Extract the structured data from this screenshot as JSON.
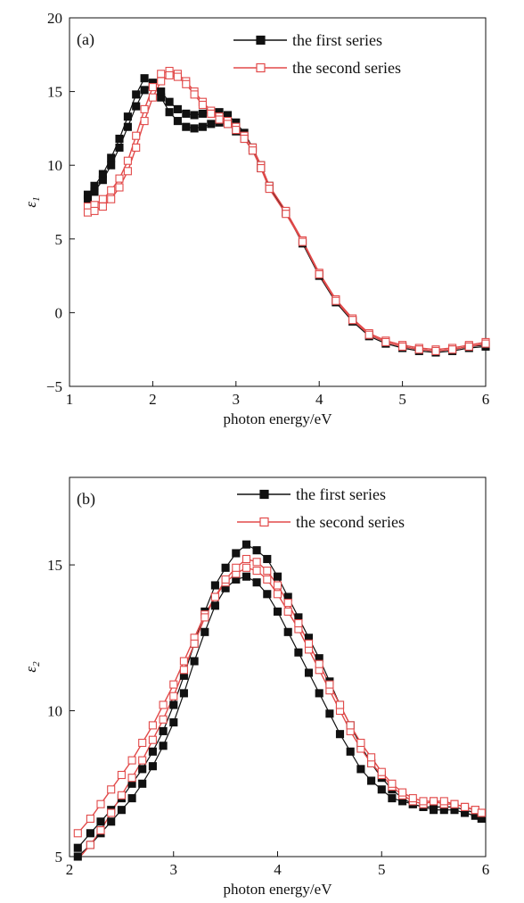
{
  "chart_data": [
    {
      "type": "line",
      "panel_label": "(a)",
      "xlabel": "photon energy/eV",
      "ylabel": "ε",
      "ylabel_sub": "1",
      "xlim": [
        1,
        6
      ],
      "ylim": [
        -5,
        20
      ],
      "xticks": [
        1,
        2,
        3,
        4,
        5,
        6
      ],
      "yticks": [
        -5,
        0,
        5,
        10,
        15,
        20
      ],
      "ytick_labels": [
        "−5",
        "0",
        "5",
        "10",
        "15",
        "20"
      ],
      "legend_position": "top-right",
      "series": [
        {
          "name": "the first series",
          "color": "#111111",
          "marker": "filled-square",
          "curves": [
            {
              "x": [
                1.22,
                1.3,
                1.4,
                1.5,
                1.6,
                1.7,
                1.8,
                1.9,
                2.0,
                2.1,
                2.2,
                2.3,
                2.4,
                2.5,
                2.6,
                2.7,
                2.8,
                2.9,
                3.0,
                3.1,
                3.2,
                3.3,
                3.4,
                3.6,
                3.8,
                4.0,
                4.2,
                4.4,
                4.6,
                4.8,
                5.0,
                5.2,
                5.4,
                5.6,
                5.8,
                6.0
              ],
              "y": [
                8.0,
                8.6,
                9.4,
                10.5,
                11.8,
                13.3,
                14.8,
                15.9,
                15.6,
                14.6,
                13.6,
                13.0,
                12.6,
                12.5,
                12.6,
                12.8,
                12.9,
                12.8,
                12.3,
                11.8,
                11.0,
                9.8,
                8.5,
                6.8,
                4.8,
                2.6,
                0.8,
                -0.5,
                -1.5,
                -2.0,
                -2.3,
                -2.5,
                -2.6,
                -2.5,
                -2.3,
                -2.2
              ]
            },
            {
              "x": [
                1.22,
                1.3,
                1.4,
                1.5,
                1.6,
                1.7,
                1.8,
                1.9,
                2.0,
                2.1,
                2.2,
                2.3,
                2.4,
                2.5,
                2.6,
                2.7,
                2.8,
                2.9,
                3.0,
                3.1,
                3.2,
                3.3,
                3.4,
                3.6,
                3.8,
                4.0,
                4.2,
                4.4,
                4.6,
                4.8,
                5.0,
                5.2,
                5.4,
                5.6,
                5.8,
                6.0
              ],
              "y": [
                7.7,
                8.2,
                9.0,
                10.0,
                11.2,
                12.6,
                14.0,
                15.1,
                15.4,
                15.0,
                14.3,
                13.8,
                13.5,
                13.4,
                13.5,
                13.6,
                13.6,
                13.4,
                12.9,
                12.2,
                11.2,
                10.0,
                8.6,
                6.8,
                4.7,
                2.5,
                0.7,
                -0.6,
                -1.6,
                -2.1,
                -2.4,
                -2.6,
                -2.7,
                -2.6,
                -2.4,
                -2.3
              ]
            }
          ]
        },
        {
          "name": "the second series",
          "color": "#e24a4a",
          "marker": "open-square",
          "curves": [
            {
              "x": [
                1.22,
                1.3,
                1.4,
                1.5,
                1.6,
                1.7,
                1.8,
                1.9,
                2.0,
                2.1,
                2.2,
                2.3,
                2.4,
                2.5,
                2.6,
                2.7,
                2.8,
                2.9,
                3.0,
                3.1,
                3.2,
                3.3,
                3.4,
                3.6,
                3.8,
                4.0,
                4.2,
                4.4,
                4.6,
                4.8,
                5.0,
                5.2,
                5.4,
                5.6,
                5.8,
                6.0
              ],
              "y": [
                7.2,
                7.3,
                7.7,
                8.3,
                9.1,
                10.3,
                12.0,
                13.8,
                15.3,
                16.2,
                16.4,
                16.2,
                15.7,
                15.0,
                14.3,
                13.7,
                13.3,
                13.0,
                12.6,
                12.0,
                11.2,
                10.0,
                8.6,
                6.9,
                4.9,
                2.7,
                0.9,
                -0.4,
                -1.4,
                -1.9,
                -2.2,
                -2.4,
                -2.5,
                -2.4,
                -2.2,
                -2.0
              ]
            },
            {
              "x": [
                1.22,
                1.3,
                1.4,
                1.5,
                1.6,
                1.7,
                1.8,
                1.9,
                2.0,
                2.1,
                2.2,
                2.3,
                2.4,
                2.5,
                2.6,
                2.7,
                2.8,
                2.9,
                3.0,
                3.1,
                3.2,
                3.3,
                3.4,
                3.6,
                3.8,
                4.0,
                4.2,
                4.4,
                4.6,
                4.8,
                5.0,
                5.2,
                5.4,
                5.6,
                5.8,
                6.0
              ],
              "y": [
                6.8,
                6.9,
                7.2,
                7.7,
                8.5,
                9.6,
                11.2,
                13.0,
                14.6,
                15.7,
                16.1,
                16.0,
                15.5,
                14.8,
                14.1,
                13.5,
                13.1,
                12.8,
                12.4,
                11.8,
                11.0,
                9.8,
                8.4,
                6.7,
                4.8,
                2.6,
                0.8,
                -0.5,
                -1.5,
                -2.0,
                -2.3,
                -2.5,
                -2.6,
                -2.5,
                -2.3,
                -2.1
              ]
            }
          ]
        }
      ]
    },
    {
      "type": "line",
      "panel_label": "(b)",
      "xlabel": "photon energy/eV",
      "ylabel": "ε",
      "ylabel_sub": "2",
      "xlim": [
        2,
        6
      ],
      "ylim": [
        5,
        18
      ],
      "xticks": [
        2,
        3,
        4,
        5,
        6
      ],
      "yticks": [
        5,
        10,
        15
      ],
      "ytick_labels": [
        "5",
        "10",
        "15"
      ],
      "legend_position": "top-right",
      "series": [
        {
          "name": "the first series",
          "color": "#111111",
          "marker": "filled-square",
          "curves": [
            {
              "x": [
                2.08,
                2.2,
                2.3,
                2.4,
                2.5,
                2.6,
                2.7,
                2.8,
                2.9,
                3.0,
                3.1,
                3.2,
                3.3,
                3.4,
                3.5,
                3.6,
                3.7,
                3.8,
                3.9,
                4.0,
                4.1,
                4.2,
                4.3,
                4.4,
                4.5,
                4.6,
                4.7,
                4.8,
                4.9,
                5.0,
                5.1,
                5.2,
                5.3,
                5.4,
                5.5,
                5.6,
                5.7,
                5.8,
                5.9,
                5.96
              ],
              "y": [
                5.3,
                5.8,
                6.2,
                6.6,
                7.0,
                7.5,
                8.0,
                8.6,
                9.3,
                10.2,
                11.2,
                12.3,
                13.4,
                14.3,
                14.9,
                15.4,
                15.7,
                15.5,
                15.2,
                14.6,
                13.9,
                13.2,
                12.5,
                11.8,
                11.0,
                10.2,
                9.5,
                8.8,
                8.2,
                7.7,
                7.3,
                7.0,
                6.8,
                6.7,
                6.6,
                6.6,
                6.6,
                6.5,
                6.4,
                6.3
              ]
            },
            {
              "x": [
                2.08,
                2.2,
                2.3,
                2.4,
                2.5,
                2.6,
                2.7,
                2.8,
                2.9,
                3.0,
                3.1,
                3.2,
                3.3,
                3.4,
                3.5,
                3.6,
                3.7,
                3.8,
                3.9,
                4.0,
                4.1,
                4.2,
                4.3,
                4.4,
                4.5,
                4.6,
                4.7,
                4.8,
                4.9,
                5.0,
                5.1,
                5.2,
                5.3,
                5.4,
                5.5,
                5.6,
                5.7,
                5.8,
                5.9,
                5.96
              ],
              "y": [
                5.0,
                5.4,
                5.8,
                6.2,
                6.6,
                7.0,
                7.5,
                8.1,
                8.8,
                9.6,
                10.6,
                11.7,
                12.7,
                13.6,
                14.2,
                14.5,
                14.6,
                14.4,
                14.0,
                13.4,
                12.7,
                12.0,
                11.3,
                10.6,
                9.9,
                9.2,
                8.6,
                8.0,
                7.6,
                7.3,
                7.0,
                6.9,
                6.8,
                6.7,
                6.7,
                6.7,
                6.7,
                6.6,
                6.5,
                6.4
              ]
            }
          ]
        },
        {
          "name": "the second series",
          "color": "#e24a4a",
          "marker": "open-square",
          "curves": [
            {
              "x": [
                2.08,
                2.2,
                2.3,
                2.4,
                2.5,
                2.6,
                2.7,
                2.8,
                2.9,
                3.0,
                3.1,
                3.2,
                3.3,
                3.4,
                3.5,
                3.6,
                3.7,
                3.8,
                3.9,
                4.0,
                4.1,
                4.2,
                4.3,
                4.4,
                4.5,
                4.6,
                4.7,
                4.8,
                4.9,
                5.0,
                5.1,
                5.2,
                5.3,
                5.4,
                5.5,
                5.6,
                5.7,
                5.8,
                5.9,
                5.96
              ],
              "y": [
                5.8,
                6.3,
                6.8,
                7.3,
                7.8,
                8.3,
                8.9,
                9.5,
                10.2,
                10.9,
                11.7,
                12.5,
                13.3,
                13.9,
                14.4,
                14.7,
                14.9,
                14.8,
                14.5,
                14.0,
                13.4,
                12.8,
                12.1,
                11.4,
                10.7,
                10.0,
                9.3,
                8.7,
                8.2,
                7.8,
                7.4,
                7.1,
                6.9,
                6.8,
                6.9,
                6.8,
                6.8,
                6.7,
                6.6,
                6.5
              ]
            },
            {
              "x": [
                2.08,
                2.2,
                2.3,
                2.4,
                2.5,
                2.6,
                2.7,
                2.8,
                2.9,
                3.0,
                3.1,
                3.2,
                3.3,
                3.4,
                3.5,
                3.6,
                3.7,
                3.8,
                3.9,
                4.0,
                4.1,
                4.2,
                4.3,
                4.4,
                4.5,
                4.6,
                4.7,
                4.8,
                4.9,
                5.0,
                5.1,
                5.2,
                5.3,
                5.4,
                5.5,
                5.6,
                5.7,
                5.8,
                5.9,
                5.96
              ],
              "y": [
                4.9,
                5.4,
                5.9,
                6.5,
                7.1,
                7.7,
                8.3,
                9.0,
                9.7,
                10.5,
                11.4,
                12.3,
                13.2,
                13.9,
                14.5,
                14.9,
                15.2,
                15.1,
                14.8,
                14.3,
                13.7,
                13.0,
                12.3,
                11.6,
                10.9,
                10.2,
                9.5,
                8.9,
                8.4,
                7.9,
                7.5,
                7.2,
                7.0,
                6.9,
                6.9,
                6.9,
                6.8,
                6.7,
                6.6,
                6.5
              ]
            }
          ]
        }
      ]
    }
  ]
}
